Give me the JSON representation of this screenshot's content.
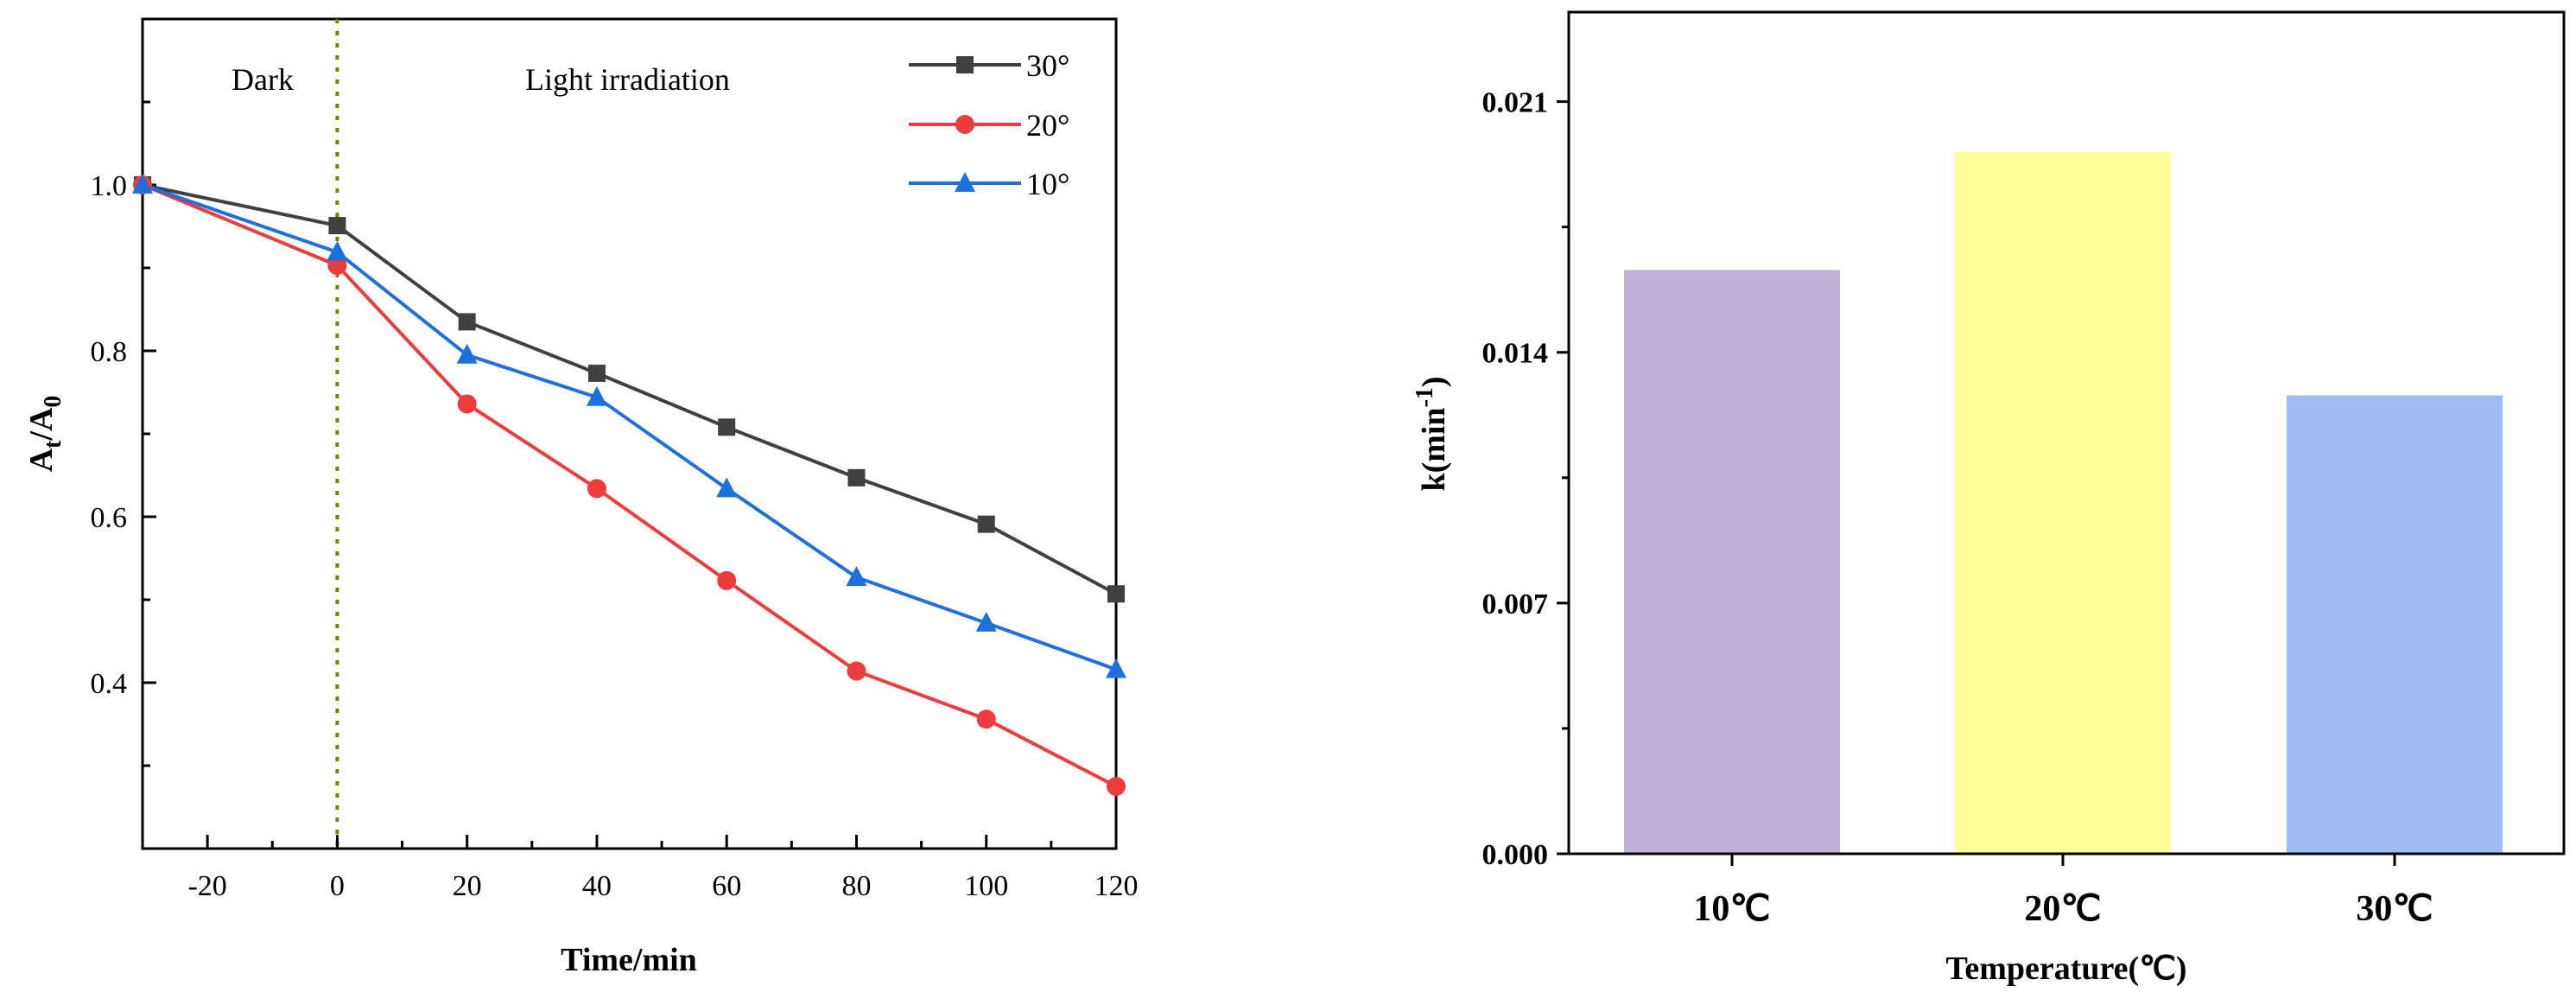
{
  "chart_data": [
    {
      "type": "line",
      "xlabel": "Time/min",
      "ylabel_main": "A",
      "ylabel_sub_t": "t",
      "ylabel_slash": "/A",
      "ylabel_sub_0": "0",
      "xlim": [
        -30,
        120
      ],
      "ylim": [
        0.2,
        1.2
      ],
      "xticks": [
        -20,
        0,
        20,
        40,
        60,
        80,
        100,
        120
      ],
      "xtick_labels": [
        "-20",
        "0",
        "20",
        "40",
        "60",
        "80",
        "100",
        "120"
      ],
      "yticks": [
        0.4,
        0.6,
        0.8,
        1.0
      ],
      "ytick_labels": [
        "0.4",
        "0.6",
        "0.8",
        "1.0"
      ],
      "x": [
        -30,
        0,
        20,
        40,
        60,
        80,
        100,
        120
      ],
      "series": [
        {
          "name": "30°",
          "color": "#404040",
          "marker": "square",
          "values": [
            1.0,
            0.951,
            0.835,
            0.773,
            0.708,
            0.647,
            0.591,
            0.507
          ]
        },
        {
          "name": "20°",
          "color": "#ee3b3b",
          "marker": "circle",
          "values": [
            1.0,
            0.903,
            0.736,
            0.634,
            0.523,
            0.414,
            0.356,
            0.275
          ]
        },
        {
          "name": "10°",
          "color": "#1e70dc",
          "marker": "triangle",
          "values": [
            1.0,
            0.919,
            0.795,
            0.744,
            0.634,
            0.527,
            0.472,
            0.416
          ]
        }
      ],
      "annotations": {
        "dark": "Dark",
        "light": "Light irradiation"
      },
      "divider_x": 0,
      "divider_color": "#808000",
      "legend_position": "top-right"
    },
    {
      "type": "bar",
      "xlabel": "Temperature(℃)",
      "ylabel_main": "k(min",
      "ylabel_sup": "-1",
      "ylabel_close": ")",
      "categories": [
        "10℃",
        "20℃",
        "30℃"
      ],
      "values": [
        0.0163,
        0.0196,
        0.0128
      ],
      "colors": [
        "#c0b1d6",
        "#ffff99",
        "#9cbcf2"
      ],
      "ylim": [
        0,
        0.0235
      ],
      "yticks": [
        0,
        0.007,
        0.014,
        0.021
      ],
      "ytick_labels": [
        "0.000",
        "0.007",
        "0.014",
        "0.021"
      ]
    }
  ]
}
